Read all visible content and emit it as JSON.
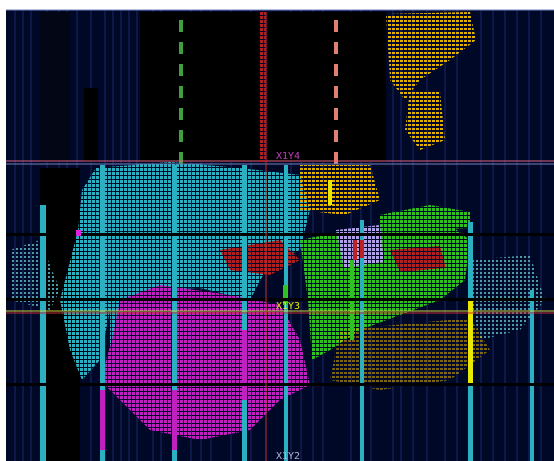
{
  "device_view": {
    "clock_regions": [
      {
        "label": "X1Y4",
        "color": "#c040c0"
      },
      {
        "label": "X1Y3",
        "color": "#e8e800"
      },
      {
        "label": "X1Y2",
        "color": "#b0b0d8"
      }
    ],
    "colors": {
      "background": "#000828",
      "fabric_column": "#101a40",
      "cell_cyan": "#2ab0c0",
      "cell_magenta": "#c020c0",
      "cell_green": "#30c020",
      "cell_yellow": "#e0b000",
      "cell_red": "#c02020",
      "cell_lavender": "#b0a0e8",
      "region_line_red": "#c03030",
      "region_line_pink": "#e06080",
      "region_line_yellow": "#d0d040"
    }
  }
}
